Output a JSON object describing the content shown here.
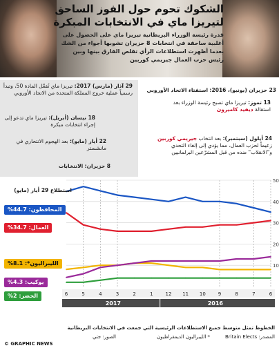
{
  "header": {
    "title": "الشكوك تحوم حول الفوز الساحق لتيريزا ماي في الانتخابات المبكرة",
    "intro": "قدرة رئيسة الوزراء البريطانية تيريزا ماي على الحصول على أغلبية ساحقة في انتخابات 8 حزيران تشوبها أجواء من الشك بعدما أظهرت استطلاعات الرأي تقلص الفارق بينها وبين رئيس حزب العمال جيريمي كوربين"
  },
  "events": {
    "e1_date": "29 آذار (مارس) 2017:",
    "e1_text": "تيريزا ماي تُفعّل المادة 50، وتبدأ رسمياً عملية خروج المملكة المتحدة من الاتحاد الأوروبي",
    "e2_date": "18 نيسان (أبريل):",
    "e2_text": "تيريزا ماي تدعو إلى إجراء انتخابات مبكرة",
    "e3_date": "22 أيار (مايو):",
    "e3_text": "بعد الهجوم الانتحاري في مانشستر",
    "e4_date": "8 حزيران:",
    "e4_text": "الانتخابات",
    "e5_date": "23 حزيران (يونيو)، 2016:",
    "e5_text": "استفتاء الاتحاد الأوروبي",
    "e6_date": "13 تموز:",
    "e6_a": "تيريزا ماي تصبح رئيسة الوزراء بعد استقالة",
    "e6_b": "ديفيد كاميرون",
    "e7_date": "24 أيلول (سبتمبر):",
    "e7_a": "بعد انتخاب",
    "e7_b": "جيريمي كوربين",
    "e7_c": "زعيماً لحزب العمال، مما يؤدي إلى إلغاء التحدي و\"الانقلاب\" ضده من قبل المشرّعين البرلمانيين"
  },
  "poll_label": "استطلاع 29 أيار (مايو)",
  "party_tags": {
    "con": "المحافظون: 44.7%",
    "lab": "العمال: 34.7%",
    "ld": "الليبراليون*: 8.1%",
    "ukip": "يوكيب: 4.3%",
    "green": "الخضر: 2%"
  },
  "colors": {
    "con": "#1a56c4",
    "lab": "#e0202f",
    "ld": "#f2b400",
    "ukip": "#9a2a9a",
    "green": "#2e9e3c",
    "year_band": "#4a4a4a",
    "grey_panel": "#e6e6e6"
  },
  "years": {
    "y2017": "2017",
    "y2016": "2016"
  },
  "footer": {
    "note": "الخطوط تمثل متوسط جميع الاستطلاعات الرئيسية التي جمعت في الانتخابات البريطانية",
    "source": "المصدر: Britain Elects",
    "ld_note": "* الليبراليون الديمقراطيون",
    "photos": "الصور: جتي",
    "brand": "© GRAPHIC NEWS"
  },
  "chart_data": {
    "type": "line",
    "x": [
      "2016-06",
      "2016-07",
      "2016-08",
      "2016-09",
      "2016-10",
      "2016-11",
      "2016-12",
      "2017-01",
      "2017-02",
      "2017-03",
      "2017-04",
      "2017-05",
      "2017-06"
    ],
    "month_ticks": [
      "6",
      "7",
      "8",
      "9",
      "10",
      "11",
      "12",
      "1",
      "2",
      "3",
      "4",
      "5",
      "6"
    ],
    "ylim": [
      0,
      50
    ],
    "yticks": [
      10,
      20,
      30,
      40,
      50
    ],
    "series": [
      {
        "name": "المحافظون",
        "color": "#1a56c4",
        "values": [
          35,
          37,
          39,
          40,
          40,
          42,
          40,
          41,
          42,
          43,
          45,
          47,
          44.7
        ]
      },
      {
        "name": "العمال",
        "color": "#e0202f",
        "values": [
          31,
          30,
          29,
          29,
          28,
          28,
          27,
          26,
          26,
          26,
          27,
          29,
          34.7
        ]
      },
      {
        "name": "الليبراليون",
        "color": "#f2b400",
        "values": [
          8,
          8,
          8,
          8,
          9,
          9,
          10,
          11,
          11,
          10,
          10,
          9,
          8.1
        ]
      },
      {
        "name": "يوكيب",
        "color": "#9a2a9a",
        "values": [
          14,
          13,
          13,
          12,
          12,
          12,
          12,
          12,
          11,
          10,
          9,
          6,
          4.3
        ]
      },
      {
        "name": "الخضر",
        "color": "#2e9e3c",
        "values": [
          4,
          4,
          4,
          4,
          4,
          4,
          4,
          4,
          4,
          4,
          3,
          2,
          2
        ]
      }
    ],
    "x_direction": "right-to-left"
  }
}
